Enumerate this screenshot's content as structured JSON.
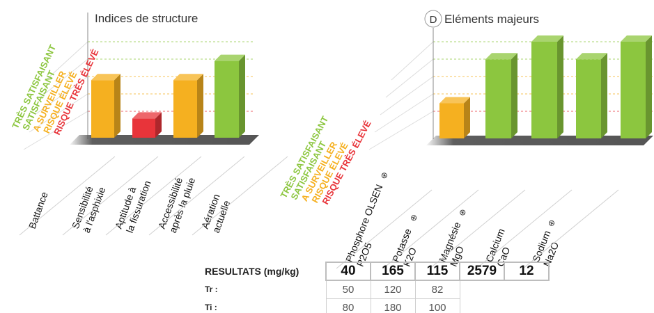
{
  "chart_data": [
    {
      "type": "bar",
      "title": "Indices de structure",
      "categories": [
        "Battance",
        "Sensibilité à l'asphixie",
        "Aptitude à la fissuration",
        "Accessibilité après la pluie",
        "Aération actuelle"
      ],
      "category_lines": [
        [
          "Battance"
        ],
        [
          "Sensibilité",
          "à l'asphixie"
        ],
        [
          "Aptitude à",
          "la fissuration"
        ],
        [
          "Accessibilité",
          "après la pluie"
        ],
        [
          "Aération",
          "actuelle"
        ]
      ],
      "values": [
        3,
        1,
        3,
        4,
        0
      ],
      "colors": [
        "#f5b020",
        "#e8343a",
        "#f5b020",
        "#8cc63f",
        "#f5b020"
      ],
      "levels": [
        "TRÈS SATISFAISANT",
        "SATISFAISANT",
        "A SURVEILLER",
        "RISQUE ÉLEVÉ",
        "RISQUE TRÈS ÉLEVÉ"
      ],
      "level_colors": [
        "#8cc63f",
        "#8cc63f",
        "#f5b020",
        "#f5b020",
        "#e8343a"
      ],
      "ylim": [
        0,
        5
      ]
    },
    {
      "type": "bar",
      "title": "Eléments majeurs",
      "title_badge": "D",
      "categories": [
        "Phosphore OLSEN P2O5",
        "Potasse K2O",
        "Magnésie MgO",
        "Calcium CaO",
        "Sodium Na2O"
      ],
      "category_lines": [
        [
          "Phosphore OLSEN",
          "P2O5"
        ],
        [
          "Potasse",
          "K2O"
        ],
        [
          "Magnésie",
          "MgO"
        ],
        [
          "Calcium",
          "CaO"
        ],
        [
          "Sodium",
          "Na2O"
        ]
      ],
      "category_markers": [
        true,
        true,
        true,
        false,
        true
      ],
      "values": [
        2,
        4.5,
        5.5,
        4.5,
        5.5
      ],
      "colors": [
        "#f5b020",
        "#8cc63f",
        "#8cc63f",
        "#8cc63f",
        "#8cc63f"
      ],
      "levels": [
        "TRÈS SATISFAISANT",
        "SATISFAISANT",
        "A SURVEILLER",
        "RISQUE ÉLEVÉ",
        "RISQUE TRÈS ÉLEVÉ"
      ],
      "level_colors": [
        "#8cc63f",
        "#8cc63f",
        "#f5b020",
        "#f5b020",
        "#e8343a"
      ],
      "ylim": [
        0,
        5.5
      ]
    }
  ],
  "results": {
    "label": "RESULTATS (mg/kg)",
    "values": [
      "40",
      "165",
      "115",
      "2579",
      "12"
    ],
    "tr_label": "Tr :",
    "tr_values": [
      "50",
      "120",
      "82"
    ],
    "ti_label": "Ti :",
    "ti_values": [
      "80",
      "180",
      "100"
    ]
  }
}
